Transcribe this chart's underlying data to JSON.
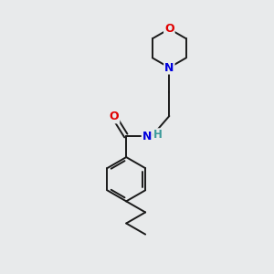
{
  "background_color": "#e8eaeb",
  "bond_color": "#1a1a1a",
  "atom_colors": {
    "O": "#e00000",
    "N_morpholine": "#0000dd",
    "N_amide": "#0000dd",
    "H": "#3a9a9a",
    "C": "#1a1a1a"
  },
  "figsize": [
    3.0,
    3.0
  ],
  "dpi": 100
}
